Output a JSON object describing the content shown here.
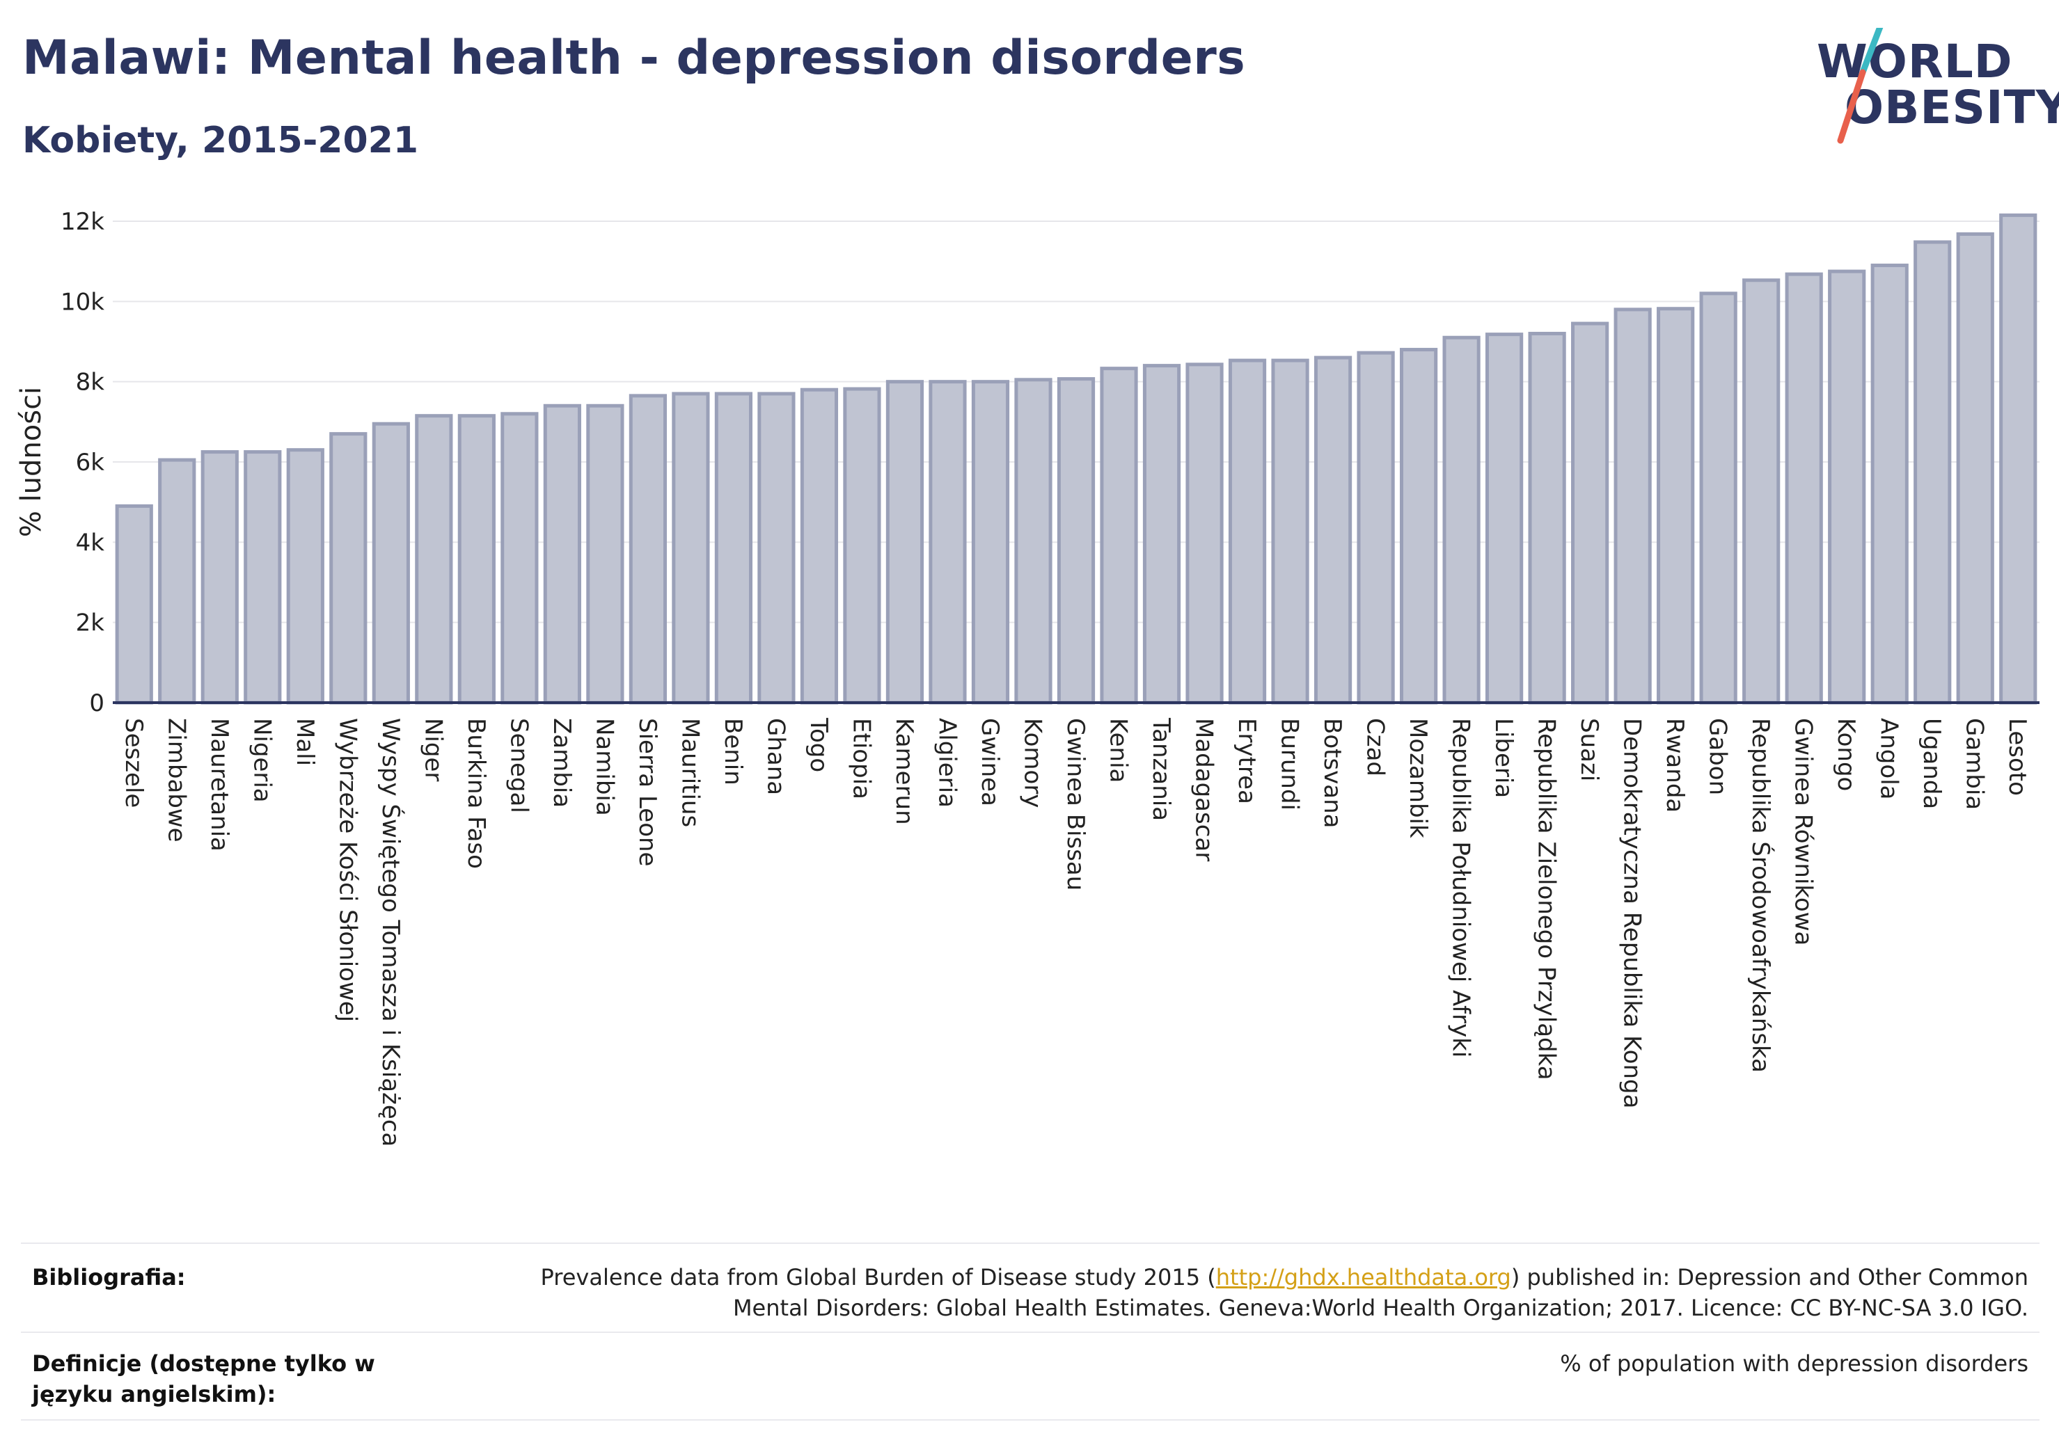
{
  "header": {
    "title": "Malawi: Mental health - depression disorders",
    "subtitle": "Kobiety, 2015-2021"
  },
  "logo": {
    "line1": "WORLD",
    "line2": "OBESITY",
    "colors": {
      "text": "#2c3560",
      "slash_teal": "#3bb8c3",
      "slash_red": "#e8604c"
    }
  },
  "chart_data": {
    "type": "bar",
    "title": "",
    "xlabel": "",
    "ylabel": "% ludności",
    "ylim": [
      0,
      12500
    ],
    "yticks": [
      0,
      2000,
      4000,
      6000,
      8000,
      10000,
      12000
    ],
    "ytick_labels": [
      "0",
      "2k",
      "4k",
      "6k",
      "8k",
      "10k",
      "12k"
    ],
    "grid": true,
    "bar_color": "#c0c4d2",
    "bar_edge_color": "#9aa0b8",
    "categories": [
      "Seszele",
      "Zimbabwe",
      "Mauretania",
      "Nigeria",
      "Mali",
      "Wybrzeże Kości Słoniowej",
      "Wyspy Świętego Tomasza i Książęca",
      "Niger",
      "Burkina Faso",
      "Senegal",
      "Zambia",
      "Namibia",
      "Sierra Leone",
      "Mauritius",
      "Benin",
      "Ghana",
      "Togo",
      "Etiopia",
      "Kamerun",
      "Algieria",
      "Gwinea",
      "Komory",
      "Gwinea Bissau",
      "Kenia",
      "Tanzania",
      "Madagascar",
      "Erytrea",
      "Burundi",
      "Botsvana",
      "Czad",
      "Mozambik",
      "Republika Południowej Afryki",
      "Liberia",
      "Republika Zielonego Przylądka",
      "Suazi",
      "Demokratyczna Republika Konga",
      "Rwanda",
      "Gabon",
      "Republika Środowoafrykańska",
      "Gwinea Równikowa",
      "Kongo",
      "Angola",
      "Uganda",
      "Gambia",
      "Lesoto"
    ],
    "values": [
      4900,
      6050,
      6250,
      6250,
      6300,
      6700,
      6950,
      7150,
      7150,
      7200,
      7400,
      7400,
      7650,
      7700,
      7700,
      7700,
      7800,
      7820,
      8000,
      8000,
      8000,
      8050,
      8070,
      8330,
      8400,
      8430,
      8530,
      8530,
      8600,
      8720,
      8800,
      9100,
      9180,
      9200,
      9450,
      9800,
      9820,
      10200,
      10530,
      10680,
      10750,
      10900,
      11480,
      11680,
      12150
    ]
  },
  "footer": {
    "bibliography_label": "Bibliografia:",
    "bibliography_text_1": "Prevalence data from Global Burden of Disease study 2015 (",
    "bibliography_link": "http://ghdx.healthdata.org",
    "bibliography_text_2": ") published in: Depression and Other Common",
    "bibliography_text_3": "Mental Disorders: Global Health Estimates. Geneva:World Health Organization; 2017. Licence: CC BY-NC-SA 3.0 IGO.",
    "definitions_label": "Definicje (dostępne tylko w języku angielskim):",
    "definitions_text": "% of population with depression disorders"
  }
}
